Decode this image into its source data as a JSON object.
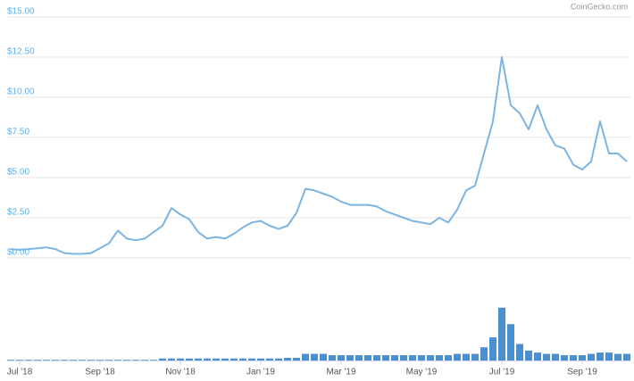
{
  "chart_data": {
    "type": "line",
    "watermark": "CoinGecko.com",
    "categories": [
      null,
      "Jul '18",
      null,
      null,
      null,
      null,
      null,
      null,
      null,
      null,
      "Sep '18",
      null,
      null,
      null,
      null,
      null,
      null,
      null,
      null,
      "Nov '18",
      null,
      null,
      null,
      null,
      null,
      null,
      null,
      null,
      "Jan '19",
      null,
      null,
      null,
      null,
      null,
      null,
      null,
      null,
      "Mar '19",
      null,
      null,
      null,
      null,
      null,
      null,
      null,
      null,
      "May '19",
      null,
      null,
      null,
      null,
      null,
      null,
      null,
      null,
      "Jul '19",
      null,
      null,
      null,
      null,
      null,
      null,
      null,
      null,
      "Sep '19",
      null,
      null,
      null,
      null,
      null
    ],
    "series": [
      {
        "color": "#7cb5e3",
        "values": [
          0.55,
          0.5,
          0.55,
          0.6,
          0.65,
          0.55,
          0.3,
          0.25,
          0.25,
          0.3,
          0.6,
          0.9,
          1.7,
          1.2,
          1.1,
          1.2,
          1.6,
          2.0,
          3.1,
          2.7,
          2.4,
          1.6,
          1.2,
          1.3,
          1.2,
          1.5,
          1.9,
          2.2,
          2.3,
          2.0,
          1.8,
          2.0,
          2.8,
          4.3,
          4.2,
          4.0,
          3.8,
          3.5,
          3.3,
          3.3,
          3.3,
          3.2,
          2.9,
          2.7,
          2.5,
          2.3,
          2.2,
          2.1,
          2.5,
          2.2,
          3.0,
          4.2,
          4.5,
          6.5,
          8.5,
          12.5,
          9.5,
          9.0,
          8.0,
          9.5,
          8.0,
          7.0,
          6.8,
          5.8,
          5.5,
          6.0,
          8.5,
          6.5,
          6.5,
          6.0
        ]
      },
      {
        "type": "bar",
        "axis": "y2",
        "color": "#4a8fd0",
        "values": [
          1,
          1,
          1,
          1,
          1,
          1,
          1,
          1,
          1,
          1,
          1,
          1,
          1,
          1,
          1,
          1,
          1,
          3,
          3,
          3,
          3,
          3,
          3,
          3,
          3,
          3,
          3,
          3,
          3,
          3,
          3,
          4,
          4,
          10,
          10,
          10,
          8,
          8,
          8,
          8,
          8,
          8,
          8,
          8,
          8,
          8,
          8,
          8,
          8,
          8,
          10,
          10,
          10,
          20,
          35,
          80,
          55,
          25,
          15,
          12,
          10,
          10,
          8,
          8,
          8,
          10,
          12,
          12,
          10,
          10
        ]
      }
    ],
    "ylim": [
      0,
      15
    ],
    "yticks": [
      {
        "value": 0,
        "label": "$0.00"
      },
      {
        "value": 2.5,
        "label": "$2.50"
      },
      {
        "value": 5,
        "label": "$5.00"
      },
      {
        "value": 7.5,
        "label": "$7.50"
      },
      {
        "value": 10,
        "label": "$10.00"
      },
      {
        "value": 12.5,
        "label": "$12.50"
      },
      {
        "value": 15,
        "label": "$15.00"
      }
    ],
    "y2lim": [
      0,
      100
    ],
    "grid": true
  }
}
